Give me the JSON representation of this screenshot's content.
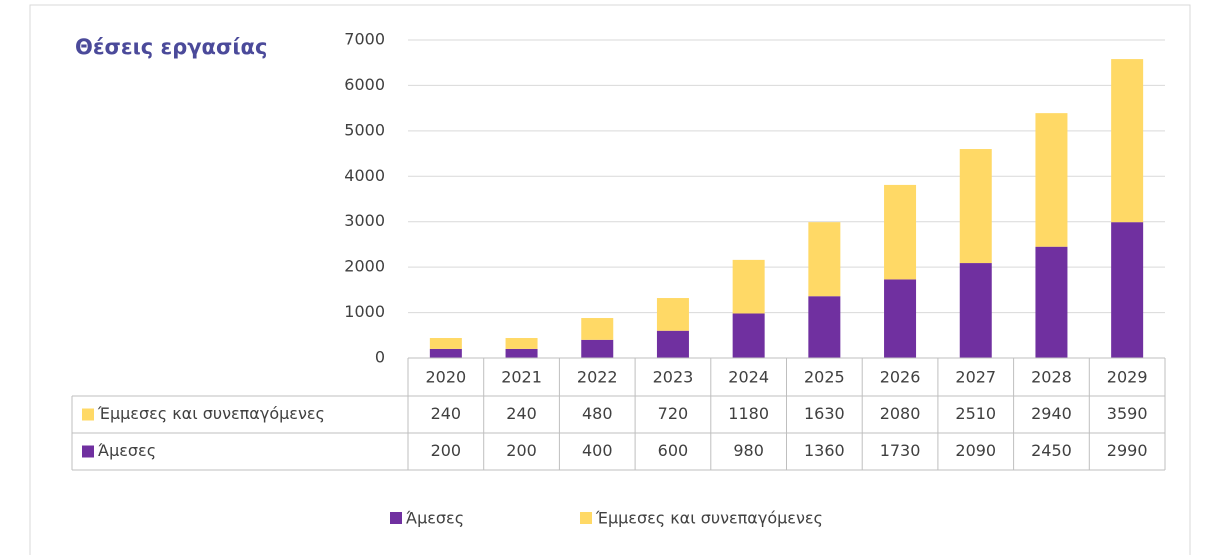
{
  "chart_data": {
    "type": "bar",
    "stacked": true,
    "title": "Θέσεις εργασίας",
    "categories": [
      "2020",
      "2021",
      "2022",
      "2023",
      "2024",
      "2025",
      "2026",
      "2027",
      "2028",
      "2029"
    ],
    "series": [
      {
        "name": "Άμεσες",
        "color": "#7030a0",
        "values": [
          200,
          200,
          400,
          600,
          980,
          1360,
          1730,
          2090,
          2450,
          2990
        ]
      },
      {
        "name": "Έμμεσες και συνεπαγόμενες",
        "color": "#ffd966",
        "values": [
          240,
          240,
          480,
          720,
          1180,
          1630,
          2080,
          2510,
          2940,
          3590
        ]
      }
    ],
    "ylim": [
      0,
      7000
    ],
    "yticks": [
      0,
      1000,
      2000,
      3000,
      4000,
      5000,
      6000,
      7000
    ],
    "grid": true,
    "data_table": true,
    "legend": "bottom"
  }
}
